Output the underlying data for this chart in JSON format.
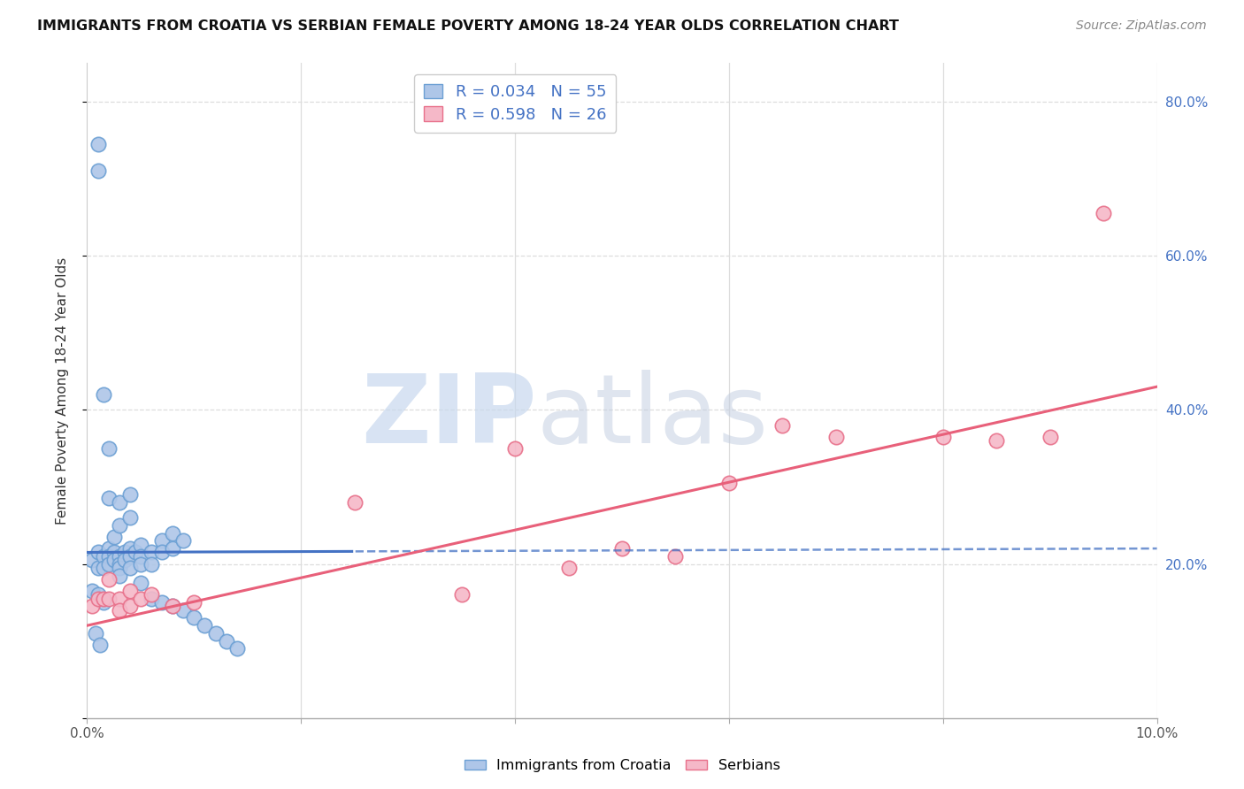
{
  "title": "IMMIGRANTS FROM CROATIA VS SERBIAN FEMALE POVERTY AMONG 18-24 YEAR OLDS CORRELATION CHART",
  "source": "Source: ZipAtlas.com",
  "ylabel": "Female Poverty Among 18-24 Year Olds",
  "xlim": [
    0.0,
    0.1
  ],
  "ylim": [
    0.0,
    0.85
  ],
  "croatia_color": "#aec6e8",
  "croatia_edge_color": "#6ca0d4",
  "serbian_color": "#f5b8c8",
  "serbian_edge_color": "#e8708a",
  "trend_croatia_solid_color": "#4472c4",
  "trend_croatia_dashed_color": "#4472c4",
  "trend_serbian_color": "#e8607a",
  "legend_R_color": "#4472c4",
  "legend_N_color": "#4472c4",
  "R_croatia": 0.034,
  "N_croatia": 55,
  "R_serbian": 0.598,
  "N_serbian": 26,
  "watermark_zip_color": "#c8d8ee",
  "watermark_atlas_color": "#c0cce0",
  "background_color": "#ffffff",
  "grid_color": "#dddddd",
  "right_axis_color": "#4472c4",
  "croatia_x": [
    0.0005,
    0.001,
    0.001,
    0.0015,
    0.0015,
    0.002,
    0.002,
    0.002,
    0.0025,
    0.0025,
    0.003,
    0.003,
    0.003,
    0.003,
    0.0035,
    0.0035,
    0.004,
    0.004,
    0.004,
    0.0045,
    0.005,
    0.005,
    0.005,
    0.006,
    0.006,
    0.007,
    0.007,
    0.008,
    0.008,
    0.009,
    0.001,
    0.001,
    0.0015,
    0.002,
    0.002,
    0.0025,
    0.003,
    0.003,
    0.004,
    0.004,
    0.005,
    0.006,
    0.007,
    0.008,
    0.009,
    0.01,
    0.011,
    0.012,
    0.013,
    0.014,
    0.0005,
    0.001,
    0.0015,
    0.0008,
    0.0012
  ],
  "croatia_y": [
    0.205,
    0.215,
    0.195,
    0.21,
    0.195,
    0.22,
    0.21,
    0.2,
    0.215,
    0.205,
    0.21,
    0.2,
    0.195,
    0.185,
    0.215,
    0.205,
    0.22,
    0.21,
    0.195,
    0.215,
    0.225,
    0.21,
    0.2,
    0.215,
    0.2,
    0.23,
    0.215,
    0.24,
    0.22,
    0.23,
    0.745,
    0.71,
    0.42,
    0.35,
    0.285,
    0.235,
    0.28,
    0.25,
    0.29,
    0.26,
    0.175,
    0.155,
    0.15,
    0.145,
    0.14,
    0.13,
    0.12,
    0.11,
    0.1,
    0.09,
    0.165,
    0.16,
    0.15,
    0.11,
    0.095
  ],
  "serbian_x": [
    0.0005,
    0.001,
    0.0015,
    0.002,
    0.002,
    0.003,
    0.003,
    0.004,
    0.004,
    0.005,
    0.006,
    0.008,
    0.01,
    0.025,
    0.035,
    0.04,
    0.045,
    0.05,
    0.055,
    0.06,
    0.065,
    0.07,
    0.08,
    0.085,
    0.09,
    0.095
  ],
  "serbian_y": [
    0.145,
    0.155,
    0.155,
    0.18,
    0.155,
    0.155,
    0.14,
    0.165,
    0.145,
    0.155,
    0.16,
    0.145,
    0.15,
    0.28,
    0.16,
    0.35,
    0.195,
    0.22,
    0.21,
    0.305,
    0.38,
    0.365,
    0.365,
    0.36,
    0.365,
    0.655
  ],
  "trend_croatia_x0": 0.0,
  "trend_croatia_x1": 0.1,
  "trend_croatia_y0": 0.215,
  "trend_croatia_y1": 0.22,
  "trend_croatia_solid_end": 0.025,
  "trend_serbian_x0": 0.0,
  "trend_serbian_x1": 0.1,
  "trend_serbian_y0": 0.12,
  "trend_serbian_y1": 0.43
}
